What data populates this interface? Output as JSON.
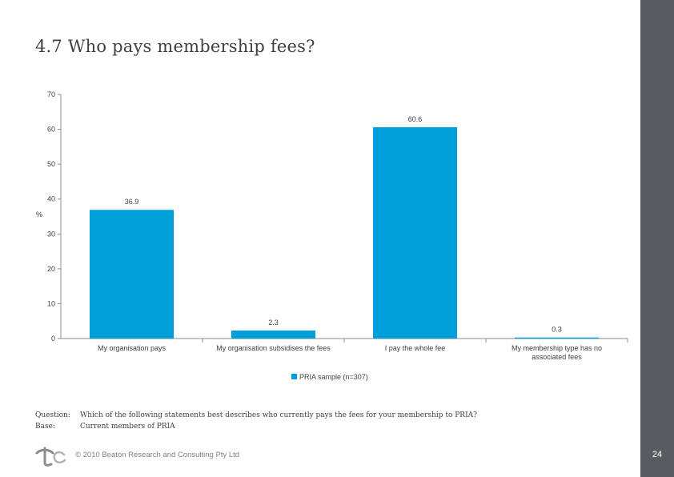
{
  "page": {
    "title": "4.7 Who pays membership fees?",
    "page_number": "24"
  },
  "chart_data": {
    "type": "bar",
    "title": "",
    "xlabel": "",
    "ylabel": "%",
    "ylim": [
      0,
      70
    ],
    "yticks": [
      0,
      10,
      20,
      30,
      40,
      50,
      60,
      70
    ],
    "ytick_labels": [
      "0",
      "10",
      "20",
      "30",
      "40",
      "50",
      "60",
      "70"
    ],
    "categories": [
      [
        "My organisation pays"
      ],
      [
        "My organisation subsidises the fees"
      ],
      [
        "I pay the whole fee"
      ],
      [
        "My membership type has no",
        "associated fees"
      ]
    ],
    "series": [
      {
        "name": "PRIA sample (n=307)",
        "values": [
          36.9,
          2.3,
          60.6,
          0.3
        ],
        "color": "#009fda"
      }
    ],
    "data_labels": [
      "36.9",
      "2.3",
      "60.6",
      "0.3"
    ],
    "legend_position": "bottom",
    "grid": false
  },
  "question": {
    "question_label": "Question:",
    "question_text": "Which of the following statements best describes who currently pays the fees for your membership to PRIA?",
    "base_label": "Base:",
    "base_text": "Current members of PRIA"
  },
  "footer": {
    "copyright": "© 2010 Beaton Research and Consulting Pty Ltd"
  },
  "colors": {
    "bar": "#009fda",
    "side_bar": "#595c5f",
    "title": "#404040"
  }
}
